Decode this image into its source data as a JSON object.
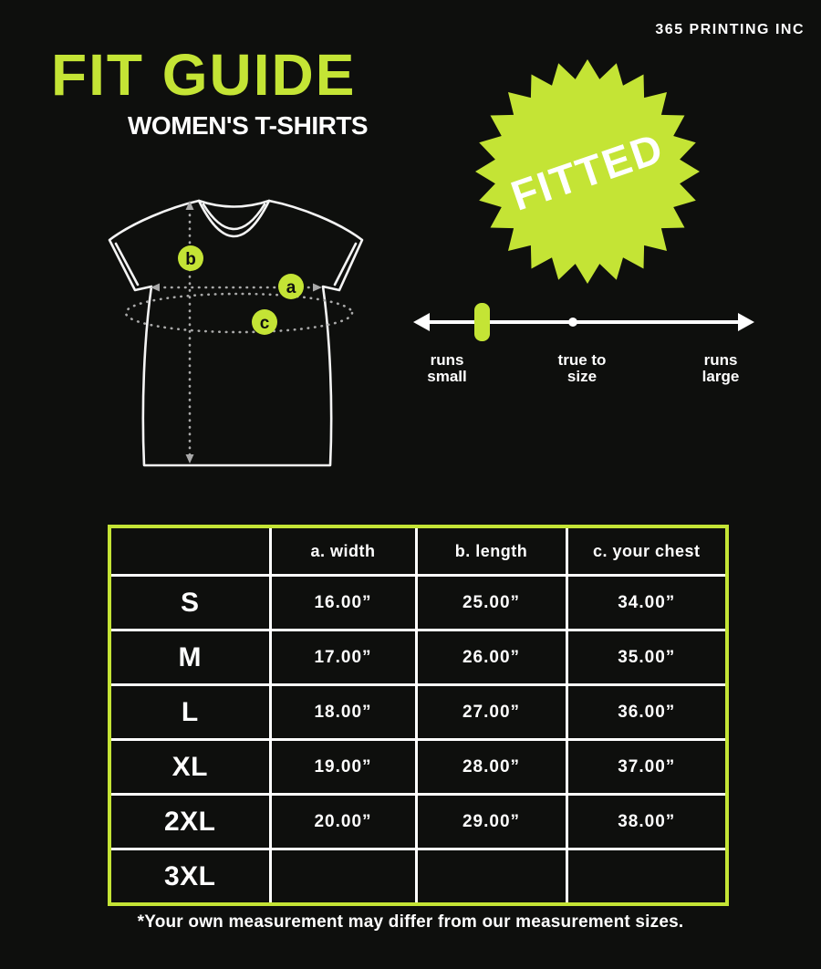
{
  "brand": "365 PRINTING INC",
  "header": {
    "title": "FIT GUIDE",
    "subtitle": "WOMEN'S T-SHIRTS"
  },
  "badge": {
    "label": "FITTED"
  },
  "diagram": {
    "marker_a": "a",
    "marker_b": "b",
    "marker_c": "c"
  },
  "fit_scale": {
    "marker_at": "runs small",
    "labels": [
      {
        "line1": "runs",
        "line2": "small"
      },
      {
        "line1": "true to",
        "line2": "size"
      },
      {
        "line1": "runs",
        "line2": "large"
      }
    ]
  },
  "size_table": {
    "headers": [
      "",
      "a. width",
      "b. length",
      "c. your chest"
    ],
    "rows": [
      {
        "size": "S",
        "width": "16.00”",
        "length": "25.00”",
        "chest": "34.00”"
      },
      {
        "size": "M",
        "width": "17.00”",
        "length": "26.00”",
        "chest": "35.00”"
      },
      {
        "size": "L",
        "width": "18.00”",
        "length": "27.00”",
        "chest": "36.00”"
      },
      {
        "size": "XL",
        "width": "19.00”",
        "length": "28.00”",
        "chest": "37.00”"
      },
      {
        "size": "2XL",
        "width": "20.00”",
        "length": "29.00”",
        "chest": "38.00”"
      },
      {
        "size": "3XL",
        "width": "",
        "length": "",
        "chest": ""
      }
    ]
  },
  "footnote": "*Your own measurement may differ from our measurement sizes.",
  "colors": {
    "accent": "#c4e435",
    "background": "#0e0f0d",
    "text": "#ffffff"
  }
}
